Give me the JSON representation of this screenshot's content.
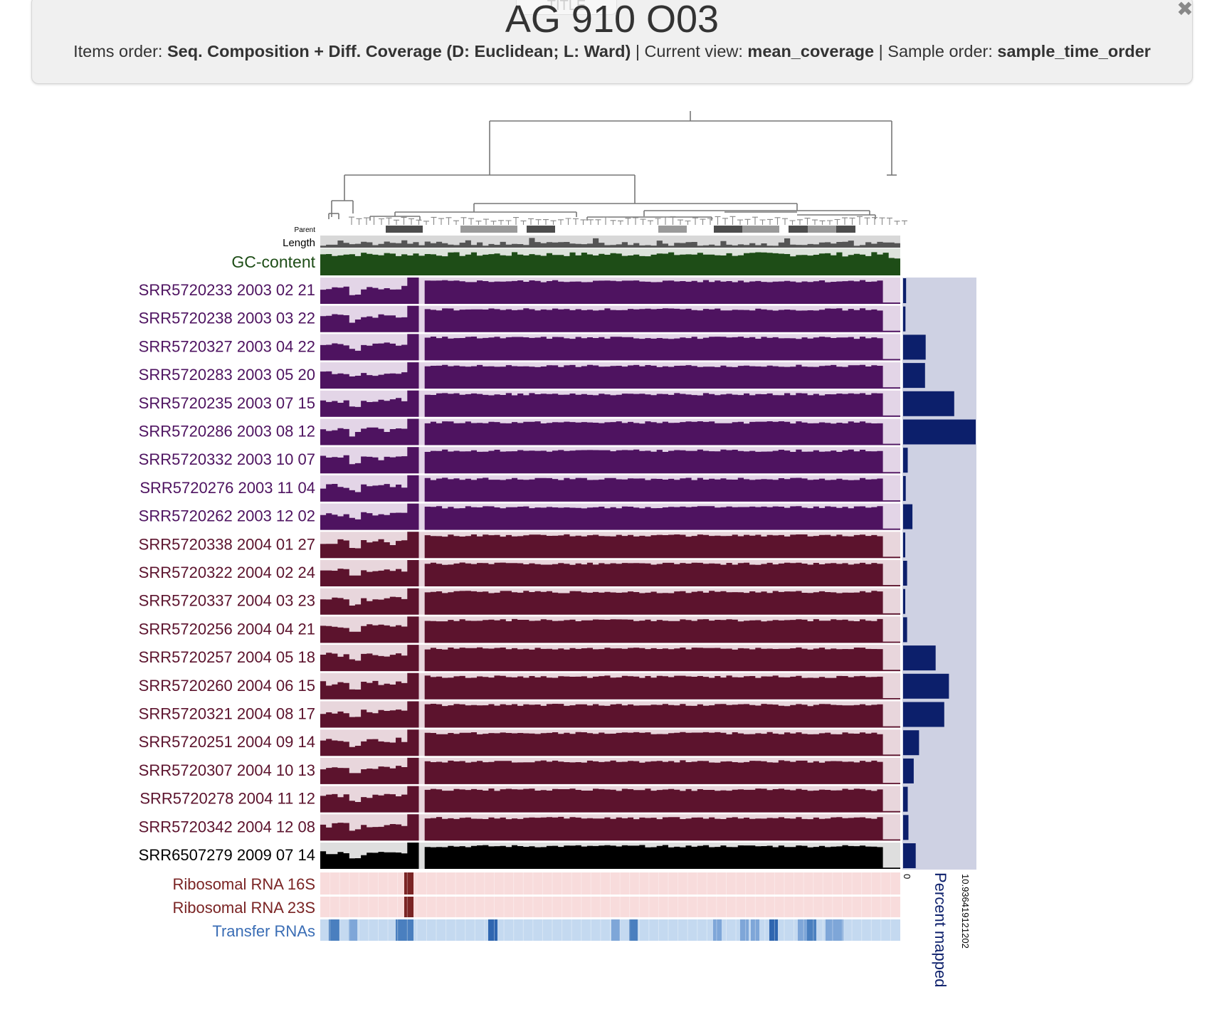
{
  "header": {
    "tab_label": "TITLE",
    "title": "AG 910 O03",
    "items_order_label": "Items order:",
    "items_order_value": "Seq. Composition + Diff. Coverage (D: Euclidean; L: Ward)",
    "current_view_label": "Current view:",
    "current_view_value": "mean_coverage",
    "sample_order_label": "Sample order:",
    "sample_order_value": "sample_time_order",
    "separator": "|"
  },
  "layers": {
    "parent_label": "Parent",
    "length_label": "Length",
    "gc_label": "GC-content",
    "rrna16s_label": "Ribosomal RNA 16S",
    "rrna23s_label": "Ribosomal RNA 23S",
    "trna_label": "Transfer RNAs"
  },
  "percent_mapped": {
    "label": "Percent mapped",
    "min_label": "0",
    "max_label": "10.936419121202",
    "max": 10.936419121202
  },
  "colors": {
    "gc": "#1e4d17",
    "gc_bg": "#dde3dc",
    "purple": "#4e1360",
    "purple_bg": "#e3d5e7",
    "maroon": "#5c132d",
    "maroon_bg": "#e8d6dc",
    "black": "#000000",
    "black_bg": "#dedede",
    "rrna": "#7a2424",
    "rrna_bg": "#f8dcdc",
    "trna": "#4a7fbf",
    "trna_bg": "#c4d9f0",
    "bar_navy": "#0c1f6b",
    "bar_bg": "#ced1e3",
    "purple_text": "#4e1360",
    "maroon_text": "#5c132d",
    "rrna_text": "#7a2424",
    "trna_text": "#3a6db5"
  },
  "samples": [
    {
      "name": "SRR5720233 2003 02 21",
      "group": "purple",
      "percent_mapped": 0.45
    },
    {
      "name": "SRR5720238 2003 03 22",
      "group": "purple",
      "percent_mapped": 0.35
    },
    {
      "name": "SRR5720327 2003 04 22",
      "group": "purple",
      "percent_mapped": 3.4
    },
    {
      "name": "SRR5720283 2003 05 20",
      "group": "purple",
      "percent_mapped": 3.3
    },
    {
      "name": "SRR5720235 2003 07 15",
      "group": "purple",
      "percent_mapped": 7.7
    },
    {
      "name": "SRR5720286 2003 08 12",
      "group": "purple",
      "percent_mapped": 10.936419121202
    },
    {
      "name": "SRR5720332 2003 10 07",
      "group": "purple",
      "percent_mapped": 0.7
    },
    {
      "name": "SRR5720276 2003 11 04",
      "group": "purple",
      "percent_mapped": 0.4
    },
    {
      "name": "SRR5720262 2003 12 02",
      "group": "purple",
      "percent_mapped": 1.4
    },
    {
      "name": "SRR5720338 2004 01 27",
      "group": "maroon",
      "percent_mapped": 0.2
    },
    {
      "name": "SRR5720322 2004 02 24",
      "group": "maroon",
      "percent_mapped": 0.6
    },
    {
      "name": "SRR5720337 2004 03 23",
      "group": "maroon",
      "percent_mapped": 0.3
    },
    {
      "name": "SRR5720256 2004 04 21",
      "group": "maroon",
      "percent_mapped": 0.6
    },
    {
      "name": "SRR5720257 2004 05 18",
      "group": "maroon",
      "percent_mapped": 4.9
    },
    {
      "name": "SRR5720260 2004 06 15",
      "group": "maroon",
      "percent_mapped": 6.9
    },
    {
      "name": "SRR5720321 2004 08 17",
      "group": "maroon",
      "percent_mapped": 6.2
    },
    {
      "name": "SRR5720251 2004 09 14",
      "group": "maroon",
      "percent_mapped": 2.4
    },
    {
      "name": "SRR5720307 2004 10 13",
      "group": "maroon",
      "percent_mapped": 1.6
    },
    {
      "name": "SRR5720278 2004 11 12",
      "group": "maroon",
      "percent_mapped": 0.7
    },
    {
      "name": "SRR5720342 2004 12 08",
      "group": "maroon",
      "percent_mapped": 0.8
    },
    {
      "name": "SRR6507279 2009 07 14",
      "group": "black",
      "percent_mapped": 1.9
    }
  ]
}
